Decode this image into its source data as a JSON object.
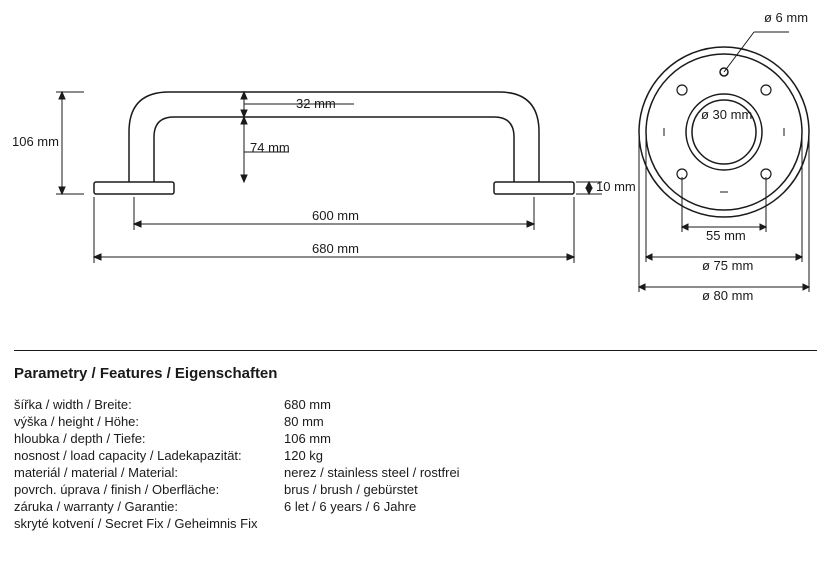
{
  "colors": {
    "stroke": "#1a1a1a",
    "background": "#ffffff"
  },
  "dims": {
    "height_total": "106 mm",
    "tube_dia": "32 mm",
    "inner_height": "74 mm",
    "flange_h": "10 mm",
    "center_dist": "600 mm",
    "overall_w": "680 mm",
    "hole_dia": "ø 6 mm",
    "tube_dia2": "ø 30 mm",
    "bolt_circle": "55 mm",
    "flange_inner": "ø 75 mm",
    "flange_outer": "ø 80 mm"
  },
  "section_title": "Parametry / Features / Eigenschaften",
  "features": [
    {
      "label": "šířka / width / Breite:",
      "value": "680 mm"
    },
    {
      "label": "výška / height / Höhe:",
      "value": "80 mm"
    },
    {
      "label": "hloubka / depth / Tiefe:",
      "value": "106 mm"
    },
    {
      "label": "nosnost / load capacity / Ladekapazität:",
      "value": "120 kg"
    },
    {
      "label": "materiál / material / Material:",
      "value": "nerez / stainless steel / rostfrei"
    },
    {
      "label": "povrch. úprava / finish / Oberfläche:",
      "value": "brus / brush / gebürstet"
    },
    {
      "label": "záruka / warranty / Garantie:",
      "value": "6 let / 6 years / 6 Jahre"
    },
    {
      "label": "skryté kotvení / Secret Fix / Geheimnis Fix",
      "value": ""
    }
  ]
}
